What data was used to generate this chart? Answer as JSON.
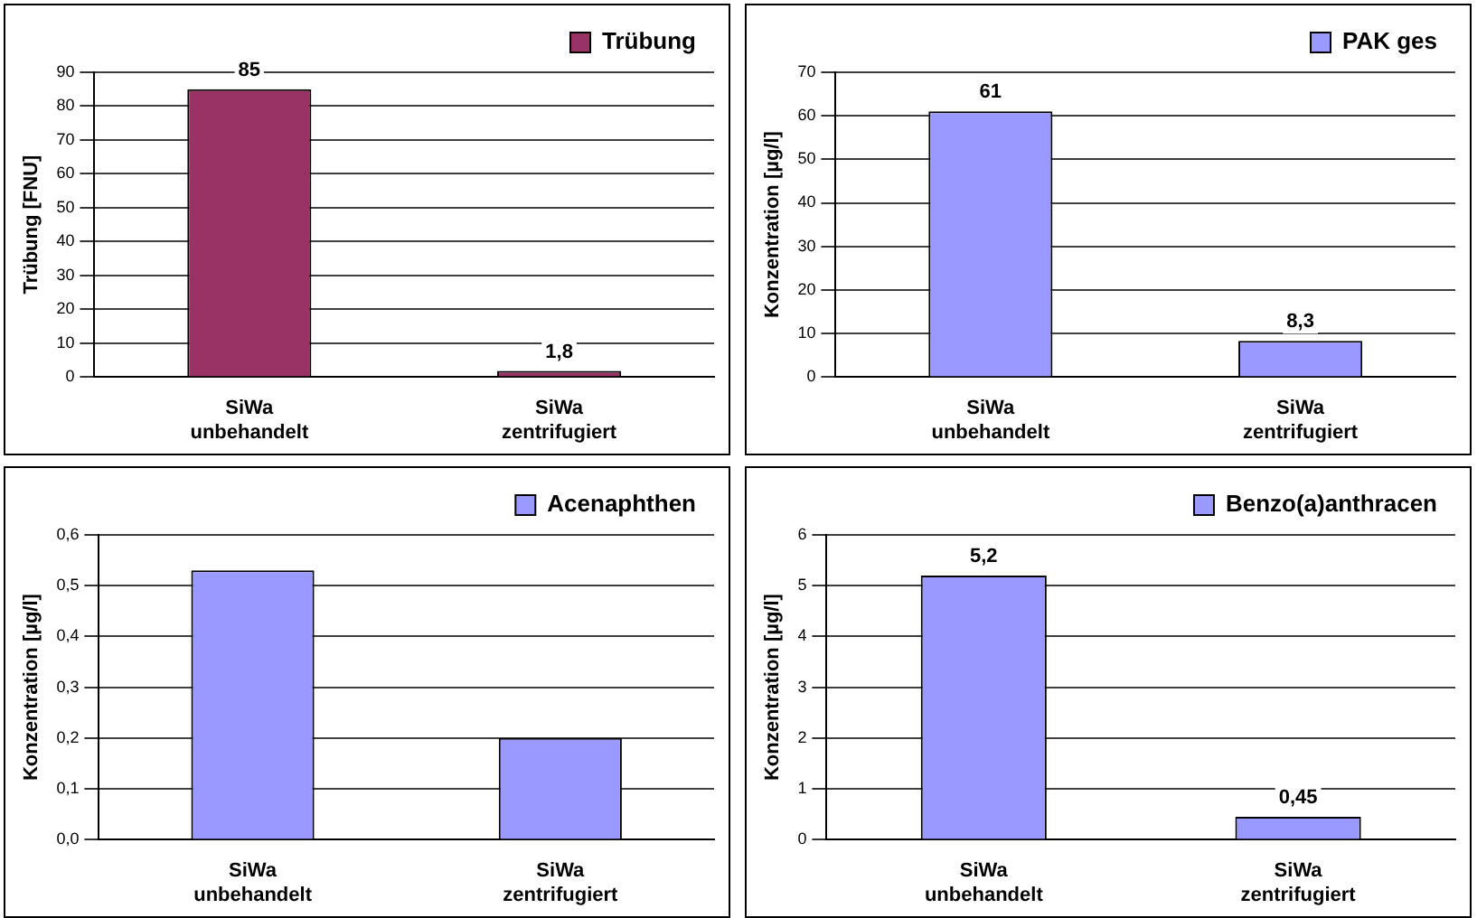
{
  "chart_data": [
    {
      "type": "bar",
      "ylabel": "Trübung [FNU]",
      "categories": [
        "SiWa\nunbehandelt",
        "SiWa\nzentrifugiert"
      ],
      "series": [
        {
          "name": "Trübung",
          "color": "#993366",
          "values": [
            85,
            1.8
          ],
          "value_labels": [
            "85",
            "1,8"
          ]
        }
      ],
      "ylim": [
        0,
        90
      ],
      "yticks": [
        0,
        10,
        20,
        30,
        40,
        50,
        60,
        70,
        80,
        90
      ],
      "grid": "y",
      "legend": "top right"
    },
    {
      "type": "bar",
      "ylabel": "Konzentration [µg/l]",
      "categories": [
        "SiWa\nunbehandelt",
        "SiWa\nzentrifugiert"
      ],
      "series": [
        {
          "name": "PAK ges",
          "color": "#9999ff",
          "values": [
            61,
            8.3
          ],
          "value_labels": [
            "61",
            "8,3"
          ]
        }
      ],
      "ylim": [
        0,
        70
      ],
      "yticks": [
        0,
        10,
        20,
        30,
        40,
        50,
        60,
        70
      ],
      "grid": "y",
      "legend": "top right"
    },
    {
      "type": "bar",
      "ylabel": "Konzentration [µg/l]",
      "categories": [
        "SiWa\nunbehandelt",
        "SiWa\nzentrifugiert"
      ],
      "series": [
        {
          "name": "Acenaphthen",
          "color": "#9999ff",
          "values": [
            0.53,
            0.2
          ]
        }
      ],
      "ylim": [
        0,
        0.6
      ],
      "yticks": [
        {
          "value": 0,
          "label": "0,0"
        },
        {
          "value": 0.1,
          "label": "0,1"
        },
        {
          "value": 0.2,
          "label": "0,2"
        },
        {
          "value": 0.3,
          "label": "0,3"
        },
        {
          "value": 0.4,
          "label": "0,4"
        },
        {
          "value": 0.5,
          "label": "0,5"
        },
        {
          "value": 0.6,
          "label": "0,6"
        }
      ],
      "grid": "y",
      "legend": "top right"
    },
    {
      "type": "bar",
      "ylabel": "Konzentration [µg/l]",
      "categories": [
        "SiWa\nunbehandelt",
        "SiWa\nzentrifugiert"
      ],
      "series": [
        {
          "name": "Benzo(a)anthracen",
          "color": "#9999ff",
          "values": [
            5.2,
            0.45
          ],
          "value_labels": [
            "5,2",
            "0,45"
          ]
        }
      ],
      "ylim": [
        0,
        6
      ],
      "yticks": [
        0,
        1,
        2,
        3,
        4,
        5,
        6
      ],
      "grid": "y",
      "legend": "top right"
    }
  ]
}
